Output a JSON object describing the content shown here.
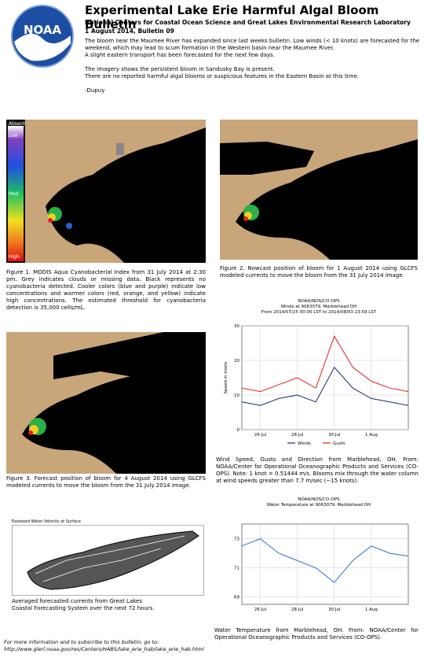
{
  "header": {
    "title": "Experimental Lake Erie Harmful Algal Bloom Bulletin",
    "subtitle": "National Centers for Coastal Ocean Science and Great Lakes Environmental Research Laboratory",
    "issue": "1 August 2014, Bulletin 09",
    "logo": "NOAA"
  },
  "paragraphs": [
    "The bloom near the Maumee River has expanded since last weeks bulletin. Low winds (< 10 knots) are forecasted for the weekend, which may lead to scum formation in the Western basin near the Maumee River.",
    "A slight eastern transport has been forecasted for the next few days.",
    "The imagery shows the persistent bloom in Sandusky Bay is present.",
    "There are no reported harmful algal blooms or suspicious features in the Eastern Basin at this time.",
    "-Dupuy"
  ],
  "colorbar": [
    "Absent",
    "Low",
    "Med",
    "High"
  ],
  "captions": {
    "fig1": "Figure 1. MODIS Aqua Cyanobacterial Index from 31 July 2014 at 2:30 pm. Grey indicates clouds or missing data. Black represents no cyanobacteria detected. Cooler colors (blue and purple) indicate low concentrations and warmer colors (red, orange, and yellow) indicate high concentrations. The estimated threshold for cyanobacteria detection is 35,000 cells/mL.",
    "fig2": "Figure 2. Nowcast position of bloom for 1 August 2014 using GLCFS modeled currents to move the bloom from the 31 July 2014 image.",
    "fig3": "Figure 3. Forecast position of bloom for 4 August 2014 using GLCFS modeled currents to move the bloom from the 31 July 2014 image.",
    "wind": "Wind Speed, Gusts and Direction from Marblehead, OH. From: NOAA/Center for Operational Oceanographic Products and Services (CO-OPS). Note: 1 knot = 0.51444 m/s. Blooms mix through the water column at wind speeds greater than 7.7 m/sec (~15 knots).",
    "currents_title": "Eastward Water Velocity at Surface",
    "currents": "Averaged forecasted currents from Great Lakes Coastal Forecasting System over the next 72 hours.",
    "temp": "Water Temperature from Marblehead, OH. From: NOAA/Center for Operational Oceanographic Products and Services (CO-OPS)."
  },
  "footer": {
    "text": "For more information and to subscribe to this bulletin, go to:",
    "url": "http://www.glerl.noaa.gov/res/Centers/HABS/lake_erie_hab/lake_erie_hab.html"
  },
  "chart_data": [
    {
      "type": "line",
      "title": "NOAA/NOS/CO-OPS",
      "subtitle": "Winds at 9063079, Marblehead OH",
      "note": "From 2014/07/25 00:00 LST to 2014/08/03 23:59 LST",
      "y_label": "Speed in knots",
      "x": [
        "25 Jul",
        "26 Jul",
        "27 Jul",
        "28 Jul",
        "29 Jul",
        "30 Jul",
        "31 Jul",
        "1 Aug",
        "2 Aug",
        "3 Aug"
      ],
      "xticks": [
        "26 Jul",
        "28 Jul",
        "30 Jul",
        "1 Aug"
      ],
      "series": [
        {
          "name": "Winds",
          "color": "#1a2a6c",
          "values": [
            8,
            7,
            9,
            10,
            8,
            18,
            12,
            9,
            8,
            7
          ]
        },
        {
          "name": "Gusts",
          "color": "#e02020",
          "values": [
            12,
            11,
            13,
            15,
            12,
            27,
            18,
            14,
            12,
            11
          ]
        }
      ],
      "ylim": [
        0,
        30
      ],
      "yticks": [
        0,
        10,
        20,
        30
      ],
      "grid": true
    },
    {
      "type": "line",
      "title": "NOAA/NOS/CO-OPS",
      "subtitle": "Water Temperature at 9063079, Marblehead OH",
      "x": [
        "25 Jul",
        "26 Jul",
        "27 Jul",
        "28 Jul",
        "29 Jul",
        "30 Jul",
        "31 Jul",
        "1 Aug",
        "2 Aug",
        "3 Aug"
      ],
      "xticks": [
        "26 Jul",
        "28 Jul",
        "30 Jul",
        "1 Aug"
      ],
      "series": [
        {
          "name": "Water Temperature",
          "color": "#2a6fd0",
          "values": [
            72.5,
            73,
            72,
            71.5,
            71,
            70,
            71.5,
            72.5,
            72,
            71.8
          ]
        }
      ],
      "ylim": [
        68.5,
        74
      ],
      "yticks": [
        69,
        71,
        73
      ],
      "grid": true
    }
  ]
}
